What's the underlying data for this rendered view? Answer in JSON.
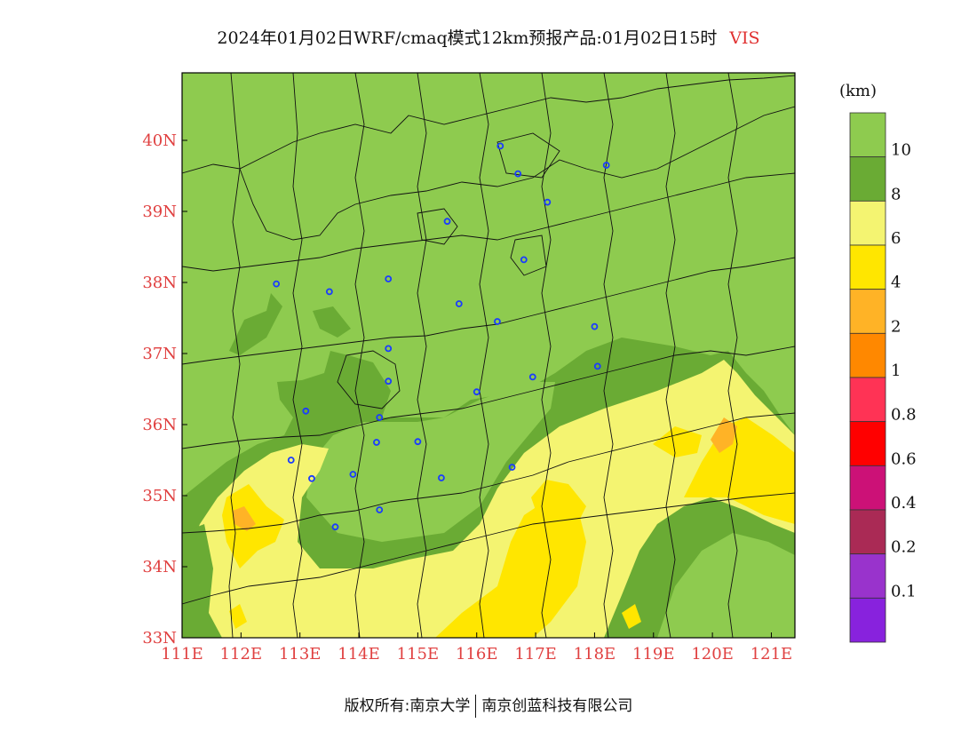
{
  "title": {
    "main": "2024年01月02日WRF/cmaq模式12km预报产品:01月02日15时",
    "variable": "VIS"
  },
  "map": {
    "lon_range": [
      111,
      121.4
    ],
    "lat_range": [
      33,
      40.95
    ],
    "lon_ticks": [
      "111E",
      "112E",
      "113E",
      "114E",
      "115E",
      "116E",
      "117E",
      "118E",
      "119E",
      "120E",
      "121E"
    ],
    "lat_ticks": [
      "33N",
      "34N",
      "35N",
      "36N",
      "37N",
      "38N",
      "39N",
      "40N"
    ],
    "tick_color": "#e04040"
  },
  "colorbar": {
    "unit": "(km)",
    "labels": [
      "10",
      "8",
      "6",
      "4",
      "2",
      "1",
      "0.8",
      "0.6",
      "0.4",
      "0.2",
      "0.1"
    ],
    "colors": [
      "#8ecb4f",
      "#6aab34",
      "#f4f471",
      "#ffe600",
      "#ffb326",
      "#ff8800",
      "#ff3355",
      "#ff0000",
      "#cc1177",
      "#aa2a55",
      "#9933cc",
      "#8822dd"
    ]
  },
  "stations": [
    {
      "lon": 112.6,
      "lat": 37.98
    },
    {
      "lon": 113.5,
      "lat": 37.87
    },
    {
      "lon": 114.5,
      "lat": 38.05
    },
    {
      "lon": 116.4,
      "lat": 39.92
    },
    {
      "lon": 116.7,
      "lat": 39.53
    },
    {
      "lon": 117.2,
      "lat": 39.13
    },
    {
      "lon": 118.2,
      "lat": 39.65
    },
    {
      "lon": 115.5,
      "lat": 38.86
    },
    {
      "lon": 116.8,
      "lat": 38.32
    },
    {
      "lon": 115.7,
      "lat": 37.7
    },
    {
      "lon": 116.35,
      "lat": 37.45
    },
    {
      "lon": 118.0,
      "lat": 37.38
    },
    {
      "lon": 118.05,
      "lat": 36.82
    },
    {
      "lon": 116.95,
      "lat": 36.67
    },
    {
      "lon": 114.5,
      "lat": 37.07
    },
    {
      "lon": 114.5,
      "lat": 36.61
    },
    {
      "lon": 116.0,
      "lat": 36.46
    },
    {
      "lon": 113.1,
      "lat": 36.19
    },
    {
      "lon": 114.35,
      "lat": 36.1
    },
    {
      "lon": 114.3,
      "lat": 35.75
    },
    {
      "lon": 115.0,
      "lat": 35.76
    },
    {
      "lon": 112.85,
      "lat": 35.5
    },
    {
      "lon": 113.2,
      "lat": 35.24
    },
    {
      "lon": 113.9,
      "lat": 35.3
    },
    {
      "lon": 115.4,
      "lat": 35.25
    },
    {
      "lon": 116.6,
      "lat": 35.4
    },
    {
      "lon": 114.35,
      "lat": 34.8
    },
    {
      "lon": 113.6,
      "lat": 34.56
    }
  ],
  "footer": {
    "left": "版权所有:南京大学",
    "right": "南京创蓝科技有限公司"
  }
}
